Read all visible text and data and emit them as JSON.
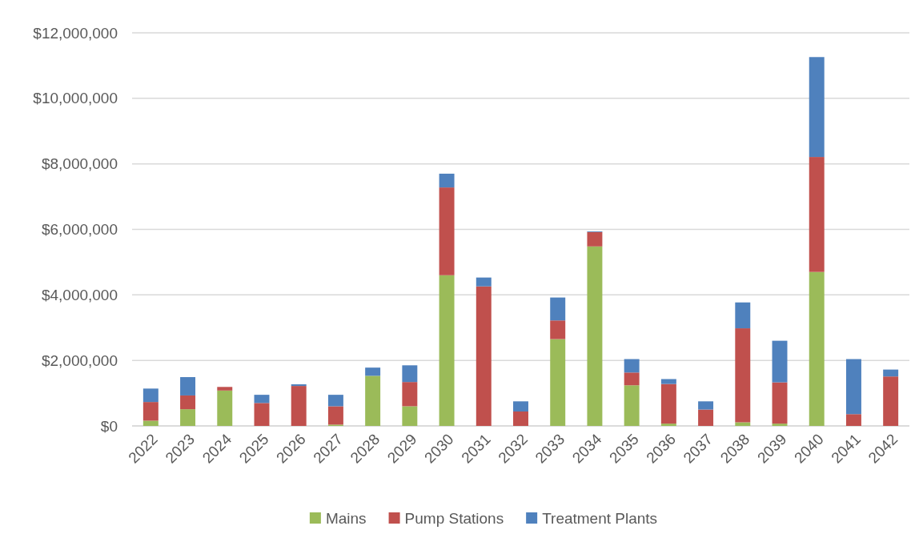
{
  "chart_data": {
    "type": "bar",
    "stacked": true,
    "categories": [
      "2022",
      "2023",
      "2024",
      "2025",
      "2026",
      "2027",
      "2028",
      "2029",
      "2030",
      "2031",
      "2032",
      "2033",
      "2034",
      "2035",
      "2036",
      "2037",
      "2038",
      "2039",
      "2040",
      "2041",
      "2042"
    ],
    "series": [
      {
        "name": "Mains",
        "color": "#9bbb59",
        "values": [
          160000,
          510000,
          1080000,
          0,
          0,
          40000,
          1530000,
          600000,
          4600000,
          0,
          0,
          2650000,
          5480000,
          1240000,
          70000,
          0,
          110000,
          70000,
          4700000,
          0,
          0
        ]
      },
      {
        "name": "Pump Stations",
        "color": "#c0504d",
        "values": [
          570000,
          420000,
          110000,
          700000,
          1220000,
          560000,
          0,
          740000,
          2680000,
          4260000,
          440000,
          570000,
          440000,
          390000,
          1210000,
          500000,
          2870000,
          1260000,
          3510000,
          360000,
          1510000
        ]
      },
      {
        "name": "Treatment Plants",
        "color": "#4f81bd",
        "values": [
          410000,
          560000,
          0,
          250000,
          50000,
          350000,
          250000,
          510000,
          420000,
          270000,
          310000,
          700000,
          20000,
          410000,
          150000,
          250000,
          790000,
          1270000,
          3050000,
          1680000,
          210000
        ]
      }
    ],
    "ylim": [
      0,
      12000000
    ],
    "yticks": [
      {
        "value": 0,
        "label": "$0"
      },
      {
        "value": 2000000,
        "label": "$2,000,000"
      },
      {
        "value": 4000000,
        "label": "$4,000,000"
      },
      {
        "value": 6000000,
        "label": "$6,000,000"
      },
      {
        "value": 8000000,
        "label": "$8,000,000"
      },
      {
        "value": 10000000,
        "label": "$10,000,000"
      },
      {
        "value": 12000000,
        "label": "$12,000,000"
      }
    ],
    "grid": "y",
    "legend": "bottom"
  }
}
